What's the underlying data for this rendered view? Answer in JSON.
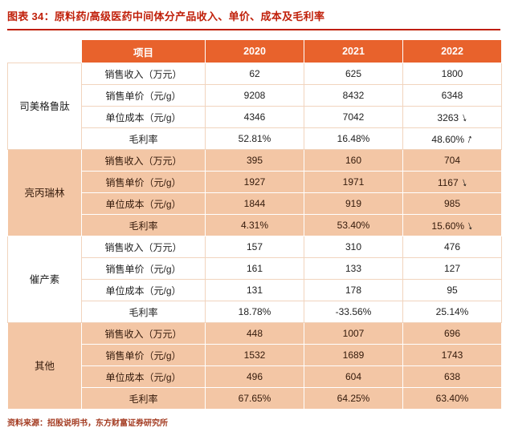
{
  "page": {
    "title": "图表 34：原料药/高级医药中间体分产品收入、单价、成本及毛利率",
    "source": "资料来源：招股说明书，东方财富证券研究所"
  },
  "colors": {
    "title_red": "#C0200A",
    "rule_red": "#BF1D00",
    "header_bg": "#E8622C",
    "header_text": "#FFFFFF",
    "shaded_row_bg": "#F3C6A5",
    "plain_border": "#F1D4BE",
    "source_text": "#A33B21",
    "arrow_black": "#111111"
  },
  "icons": {
    "arrow_down": "↓",
    "arrow_up": "↑"
  },
  "chart_data": {
    "type": "table",
    "title": "原料药/高级医药中间体分产品收入、单价、成本及毛利率",
    "columns": {
      "item": "项目",
      "years": [
        "2020",
        "2021",
        "2022"
      ]
    },
    "groups": [
      {
        "name": "司美格鲁肽",
        "shaded": false,
        "rows": [
          {
            "label": "销售收入（万元）",
            "values": [
              "62",
              "625",
              "1800"
            ],
            "arrows": [
              "",
              "",
              ""
            ]
          },
          {
            "label": "销售单价（元/g）",
            "values": [
              "9208",
              "8432",
              "6348"
            ],
            "arrows": [
              "",
              "",
              ""
            ]
          },
          {
            "label": "单位成本（元/g）",
            "values": [
              "4346",
              "7042",
              "3263"
            ],
            "arrows": [
              "",
              "",
              "down"
            ]
          },
          {
            "label": "毛利率",
            "values": [
              "52.81%",
              "16.48%",
              "48.60%"
            ],
            "arrows": [
              "",
              "",
              "up"
            ]
          }
        ]
      },
      {
        "name": "亮丙瑞林",
        "shaded": true,
        "rows": [
          {
            "label": "销售收入（万元）",
            "values": [
              "395",
              "160",
              "704"
            ],
            "arrows": [
              "",
              "",
              ""
            ]
          },
          {
            "label": "销售单价（元/g）",
            "values": [
              "1927",
              "1971",
              "1167"
            ],
            "arrows": [
              "",
              "",
              "down"
            ]
          },
          {
            "label": "单位成本（元/g）",
            "values": [
              "1844",
              "919",
              "985"
            ],
            "arrows": [
              "",
              "",
              ""
            ]
          },
          {
            "label": "毛利率",
            "values": [
              "4.31%",
              "53.40%",
              "15.60%"
            ],
            "arrows": [
              "",
              "",
              "down"
            ]
          }
        ]
      },
      {
        "name": "催产素",
        "shaded": false,
        "rows": [
          {
            "label": "销售收入（万元）",
            "values": [
              "157",
              "310",
              "476"
            ],
            "arrows": [
              "",
              "",
              ""
            ]
          },
          {
            "label": "销售单价（元/g）",
            "values": [
              "161",
              "133",
              "127"
            ],
            "arrows": [
              "",
              "",
              ""
            ]
          },
          {
            "label": "单位成本（元/g）",
            "values": [
              "131",
              "178",
              "95"
            ],
            "arrows": [
              "",
              "",
              ""
            ]
          },
          {
            "label": "毛利率",
            "values": [
              "18.78%",
              "-33.56%",
              "25.14%"
            ],
            "arrows": [
              "",
              "",
              ""
            ]
          }
        ]
      },
      {
        "name": "其他",
        "shaded": true,
        "rows": [
          {
            "label": "销售收入（万元）",
            "values": [
              "448",
              "1007",
              "696"
            ],
            "arrows": [
              "",
              "",
              ""
            ]
          },
          {
            "label": "销售单价（元/g）",
            "values": [
              "1532",
              "1689",
              "1743"
            ],
            "arrows": [
              "",
              "",
              ""
            ]
          },
          {
            "label": "单位成本（元/g）",
            "values": [
              "496",
              "604",
              "638"
            ],
            "arrows": [
              "",
              "",
              ""
            ]
          },
          {
            "label": "毛利率",
            "values": [
              "67.65%",
              "64.25%",
              "63.40%"
            ],
            "arrows": [
              "",
              "",
              ""
            ]
          }
        ]
      }
    ]
  }
}
